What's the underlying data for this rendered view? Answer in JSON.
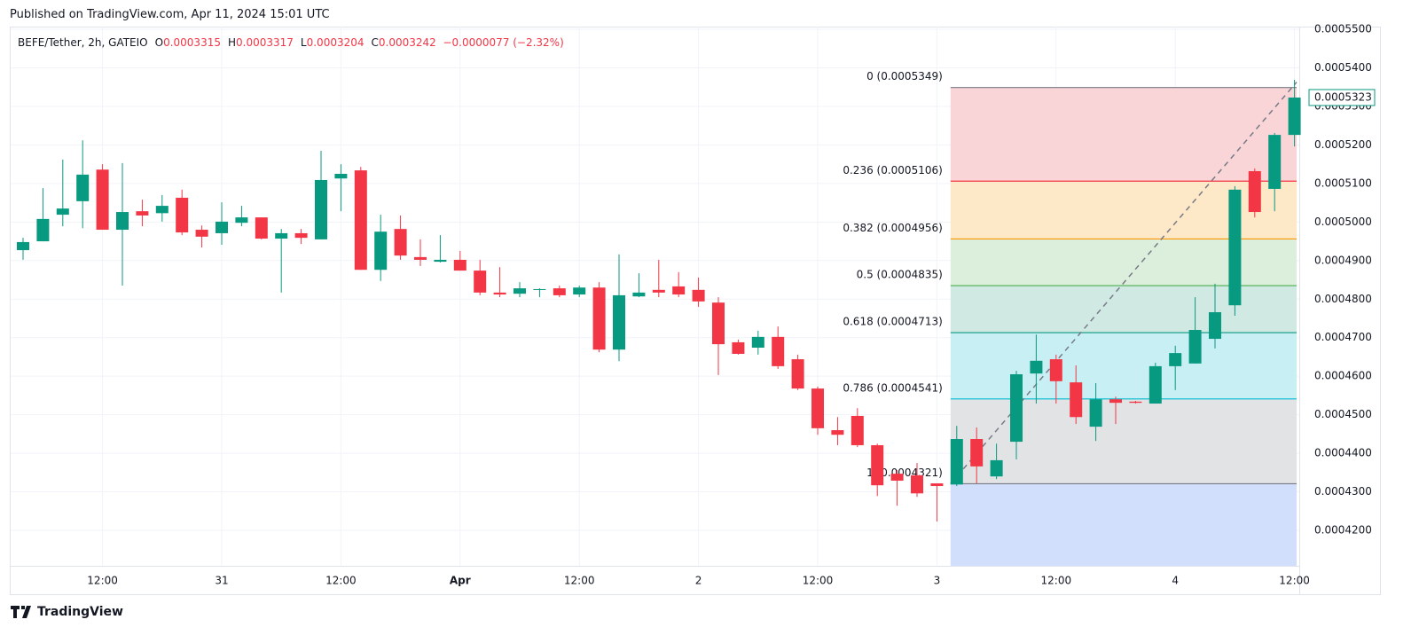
{
  "published": "Published on TradingView.com, Apr 11, 2024 15:01 UTC",
  "brand": "TradingView",
  "chart_data": {
    "type": "candlestick",
    "legend": {
      "symbol": "BEFE/Tether, 2h, GATEIO",
      "fields": [
        {
          "key": "O",
          "value": "0.0003315"
        },
        {
          "key": "H",
          "value": "0.0003317"
        },
        {
          "key": "L",
          "value": "0.0003204"
        },
        {
          "key": "C",
          "value": "0.0003242"
        }
      ],
      "change": "−0.0000077 (−2.32%)"
    },
    "up_color": "#089981",
    "down_color": "#f23645",
    "categories": [
      null,
      null,
      null,
      null,
      "12:00",
      null,
      null,
      null,
      null,
      null,
      "31",
      null,
      null,
      null,
      null,
      null,
      "12:00",
      null,
      null,
      null,
      null,
      null,
      "Apr",
      null,
      null,
      null,
      null,
      null,
      "12:00",
      null,
      null,
      null,
      null,
      null,
      "2",
      null,
      null,
      null,
      null,
      null,
      "12:00",
      null,
      null,
      null,
      null,
      null,
      "3",
      null,
      null,
      null,
      null,
      null,
      "12:00",
      null,
      null,
      null,
      null,
      null,
      "4",
      null,
      null,
      null,
      null,
      null,
      "12:00"
    ],
    "open": [
      0.0004927,
      0.000495,
      0.0005019,
      0.0005054,
      0.0005136,
      0.000498,
      0.0005028,
      0.0005023,
      0.0005063,
      0.000498,
      0.0004971,
      0.0004998,
      0.0005012,
      0.0004957,
      0.0004971,
      0.0004955,
      0.0005113,
      0.0005134,
      0.0004876,
      0.0004982,
      0.0004909,
      0.0004897,
      0.0004902,
      0.0004874,
      0.0004817,
      0.0004814,
      0.0004824,
      0.0004828,
      0.0004812,
      0.000483,
      0.0004669,
      0.0004807,
      0.0004824,
      0.0004833,
      0.0004824,
      0.0004791,
      0.0004688,
      0.0004674,
      0.0004702,
      0.0004644,
      0.0004568,
      0.000446,
      0.0004497,
      0.0004421,
      0.0004347,
      0.0004343,
      0.0004322,
      0.0004319,
      0.0004437,
      0.000434,
      0.000443,
      0.0004607,
      0.0004644,
      0.0004584,
      0.0004469,
      0.000454,
      0.0004534,
      0.0004529,
      0.0004626,
      0.0004633,
      0.0004697,
      0.0004784,
      0.0005132,
      0.0005086,
      0.0005226
    ],
    "high": [
      0.0004959,
      0.0005088,
      0.0005162,
      0.0005212,
      0.000515,
      0.0005153,
      0.0005058,
      0.000507,
      0.0005084,
      0.0004991,
      0.0005051,
      0.0005042,
      0.0005012,
      0.0004982,
      0.0004982,
      0.0005185,
      0.000515,
      0.0005143,
      0.0005019,
      0.0005017,
      0.0004955,
      0.0004966,
      0.0004925,
      0.0004902,
      0.0004883,
      0.0004844,
      0.0004828,
      0.0004835,
      0.0004835,
      0.0004844,
      0.0004916,
      0.0004867,
      0.0004902,
      0.000487,
      0.0004856,
      0.0004805,
      0.0004695,
      0.0004718,
      0.0004729,
      0.0004656,
      0.0004573,
      0.0004494,
      0.0004517,
      0.0004425,
      0.0004356,
      0.0004375,
      0.0004322,
      0.0004471,
      0.0004467,
      0.0004425,
      0.0004614,
      0.0004708,
      0.0004656,
      0.0004628,
      0.0004582,
      0.0004547,
      0.0004536,
      0.0004635,
      0.0004679,
      0.0004805,
      0.000484,
      0.0005093,
      0.0005139,
      0.0005231,
      0.0005369
    ],
    "low": [
      0.0004902,
      0.000495,
      0.0004989,
      0.0004984,
      0.000498,
      0.0004835,
      0.0004989,
      0.0005001,
      0.0004966,
      0.0004934,
      0.0004941,
      0.0004989,
      0.0004955,
      0.0004817,
      0.0004943,
      0.0004955,
      0.0005028,
      0.0004876,
      0.0004847,
      0.0004902,
      0.0004886,
      0.0004895,
      0.0004874,
      0.000481,
      0.0004805,
      0.0004805,
      0.0004805,
      0.0004805,
      0.0004805,
      0.0004662,
      0.0004639,
      0.0004805,
      0.0004805,
      0.0004805,
      0.000478,
      0.0004603,
      0.0004656,
      0.0004656,
      0.0004619,
      0.0004564,
      0.0004448,
      0.0004421,
      0.0004416,
      0.0004289,
      0.0004264,
      0.0004287,
      0.0004223,
      0.0004315,
      0.0004322,
      0.0004333,
      0.0004384,
      0.0004529,
      0.0004529,
      0.0004476,
      0.0004432,
      0.0004476,
      0.0004529,
      0.0004529,
      0.0004564,
      0.0004633,
      0.0004672,
      0.0004757,
      0.0005012,
      0.0005028,
      0.0005196
    ],
    "close": [
      0.0004948,
      0.0005008,
      0.0005035,
      0.0005123,
      0.000498,
      0.0005026,
      0.0005017,
      0.0005042,
      0.0004973,
      0.0004962,
      0.0005001,
      0.0005012,
      0.0004957,
      0.0004971,
      0.0004959,
      0.0005109,
      0.0005125,
      0.0004876,
      0.0004975,
      0.0004913,
      0.0004902,
      0.0004902,
      0.0004874,
      0.0004817,
      0.0004812,
      0.0004828,
      0.0004826,
      0.000481,
      0.000483,
      0.0004669,
      0.000481,
      0.0004817,
      0.0004817,
      0.0004812,
      0.0004794,
      0.0004683,
      0.0004658,
      0.0004702,
      0.0004626,
      0.0004568,
      0.0004465,
      0.0004448,
      0.0004421,
      0.0004317,
      0.0004329,
      0.0004296,
      0.0004315,
      0.0004437,
      0.0004366,
      0.0004382,
      0.0004605,
      0.000464,
      0.0004587,
      0.0004494,
      0.000454,
      0.0004531,
      0.0004531,
      0.0004626,
      0.000466,
      0.000472,
      0.0004766,
      0.0005084,
      0.0005026,
      0.0005226,
      0.0005323
    ],
    "ylim": [
      0.0004108,
      0.0005507
    ],
    "yticks": [
      {
        "value": 0.00042,
        "label": "0.0004200"
      },
      {
        "value": 0.00043,
        "label": "0.0004300"
      },
      {
        "value": 0.00044,
        "label": "0.0004400"
      },
      {
        "value": 0.00045,
        "label": "0.0004500"
      },
      {
        "value": 0.00046,
        "label": "0.0004600"
      },
      {
        "value": 0.00047,
        "label": "0.0004700"
      },
      {
        "value": 0.00048,
        "label": "0.0004800"
      },
      {
        "value": 0.00049,
        "label": "0.0004900"
      },
      {
        "value": 0.0005,
        "label": "0.0005000"
      },
      {
        "value": 0.00051,
        "label": "0.0005100"
      },
      {
        "value": 0.00052,
        "label": "0.0005200"
      },
      {
        "value": 0.00053,
        "label": "0.0005300"
      },
      {
        "value": 0.00054,
        "label": "0.0005400"
      },
      {
        "value": 0.00055,
        "label": "0.0005500"
      }
    ],
    "grid": true,
    "last_price": {
      "value": 0.0005323,
      "label": "0.0005323"
    },
    "fib_start_index": 47,
    "fib_end_index": 64,
    "fib_levels": [
      {
        "value": 0.0005349,
        "label": "0 (0.0005349)",
        "color": "#787b86",
        "fill": "#f9d5d8"
      },
      {
        "value": 0.0005106,
        "label": "0.236 (0.0005106)",
        "color": "#f23645",
        "fill": "#fde8c8"
      },
      {
        "value": 0.0004956,
        "label": "0.382 (0.0004956)",
        "color": "#ff9800",
        "fill": "#dcefdc"
      },
      {
        "value": 0.0004835,
        "label": "0.5 (0.0004835)",
        "color": "#4caf50",
        "fill": "#d0e9e3"
      },
      {
        "value": 0.0004713,
        "label": "0.618 (0.0004713)",
        "color": "#089981",
        "fill": "#c8eff3"
      },
      {
        "value": 0.0004541,
        "label": "0.786 (0.0004541)",
        "color": "#00bcd4",
        "fill": "#e2e3e5"
      },
      {
        "value": 0.0004321,
        "label": "1 (0.0004321)",
        "color": "#787b86",
        "fill": "#d1defc"
      }
    ]
  }
}
